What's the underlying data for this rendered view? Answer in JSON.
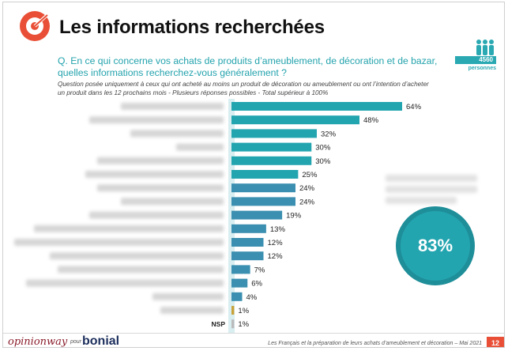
{
  "header": {
    "title": "Les informations recherchées",
    "sample_count": "4560",
    "sample_label": "personnes"
  },
  "question": {
    "text": "Q. En ce qui concerne vos achats de produits d’ameublement, de décoration et de bazar, quelles informations recherchez-vous généralement ?",
    "note": "Question posée uniquement à ceux qui ont acheté au moins un produit de décoration ou ameublement ou ont l’intention d’acheter un produit dans les 12 prochains mois - Plusieurs réponses possibles - Total supérieur à 100%"
  },
  "highlight": {
    "value": "83%",
    "color": "#23a5b0"
  },
  "colors": {
    "accent": "#23a5b0",
    "bar_main": "#23a5b0",
    "bar_mid": "#3b8fb0",
    "bar_nsp": "#c9a23a",
    "brand_red": "#e94f36"
  },
  "chart_data": {
    "type": "bar",
    "orientation": "horizontal",
    "categories": [
      "",
      "",
      "",
      "",
      "",
      "",
      "",
      "",
      "",
      "",
      "",
      "",
      "",
      "",
      "",
      "",
      "NSP"
    ],
    "values": [
      64,
      48,
      32,
      30,
      30,
      25,
      24,
      24,
      19,
      13,
      12,
      12,
      7,
      6,
      4,
      1,
      1
    ],
    "value_labels": [
      "64%",
      "48%",
      "32%",
      "30%",
      "30%",
      "25%",
      "24%",
      "24%",
      "19%",
      "13%",
      "12%",
      "12%",
      "7%",
      "6%",
      "4%",
      "1%",
      "1%"
    ],
    "xlim": [
      0,
      64
    ],
    "grid": false
  },
  "footer": {
    "brand_left": "opinionway",
    "pour": "pour",
    "brand_right": "bonial",
    "caption": "Les Français et la préparation de leurs achats d’ameublement et décoration – Mai 2021",
    "page": "12"
  }
}
